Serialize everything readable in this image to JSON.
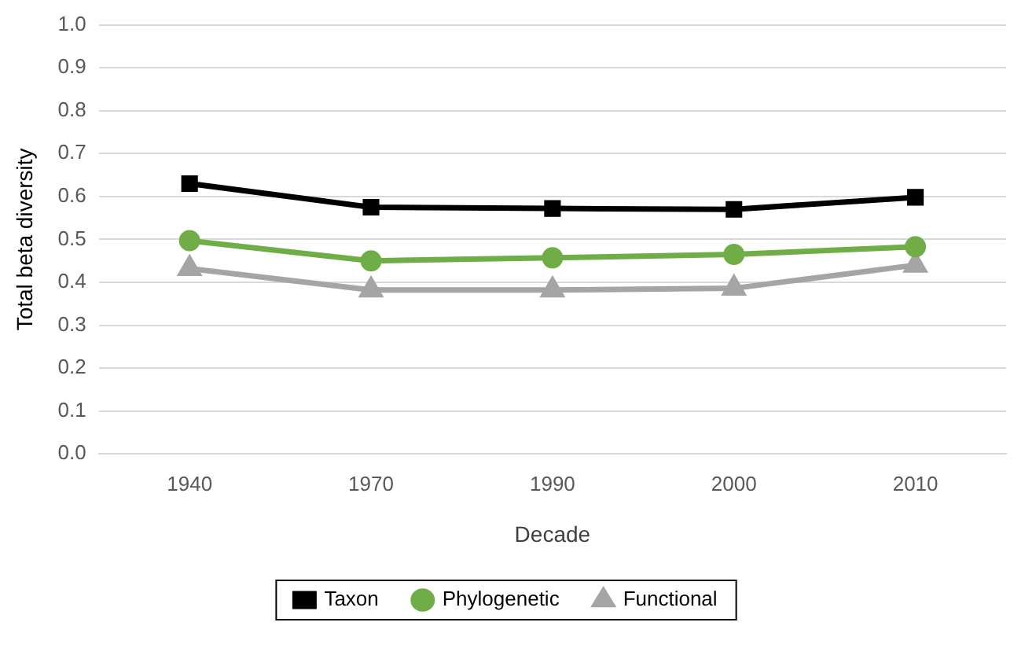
{
  "chart_data": {
    "type": "line",
    "xlabel": "Decade",
    "ylabel": "Total beta diversity",
    "categories": [
      "1940",
      "1970",
      "1990",
      "2000",
      "2010"
    ],
    "series": [
      {
        "name": "Taxon",
        "color": "#000000",
        "marker": "square",
        "values": [
          0.63,
          0.575,
          0.572,
          0.57,
          0.598
        ]
      },
      {
        "name": "Phylogenetic",
        "color": "#70ad47",
        "marker": "circle",
        "values": [
          0.497,
          0.45,
          0.457,
          0.465,
          0.483
        ]
      },
      {
        "name": "Functional",
        "color": "#a5a5a5",
        "marker": "triangle",
        "values": [
          0.432,
          0.382,
          0.382,
          0.386,
          0.44
        ]
      }
    ],
    "ylim": [
      0,
      1
    ],
    "yticks": [
      {
        "value": 0,
        "label": "0.0"
      },
      0.1,
      0.2,
      0.3,
      0.4,
      0.5,
      0.6,
      0.7,
      0.8,
      0.9,
      {
        "value": 1,
        "label": "1.0"
      }
    ],
    "grid": "y",
    "legend": "bottom",
    "line_style": "solid"
  }
}
